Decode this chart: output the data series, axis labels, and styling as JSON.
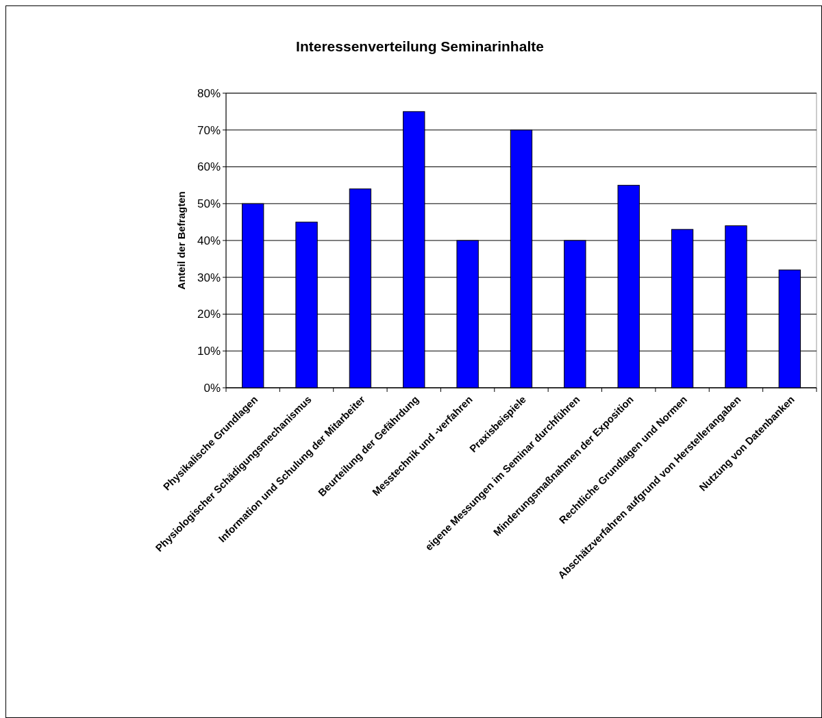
{
  "chart_data": {
    "type": "bar",
    "title": "Interessenverteilung Seminarinhalte",
    "ylabel": "Anteil der Befragten",
    "categories": [
      "Physikalische Grundlagen",
      "Physiologischer Schädigungsmechanismus",
      "Information und Schulung der Mitarbeiter",
      "Beurteilung der Gefährdung",
      "Messtechnik und -verfahren",
      "Praxisbeispiele",
      "eigene Messungen im Seminar durchführen",
      "Minderungsmaßnahmen der Exposition",
      "Rechtliche Grundlagen und Normen",
      "Abschätzverfahren aufgrund von Herstellerangaben",
      "Nutzung von Datenbanken"
    ],
    "values": [
      50,
      45,
      54,
      75,
      40,
      70,
      40,
      55,
      43,
      44,
      32
    ],
    "color": "#0000ff",
    "ylim": [
      0,
      80
    ],
    "yticks": [
      {
        "value": 0,
        "label": "0%"
      },
      {
        "value": 10,
        "label": "10%"
      },
      {
        "value": 20,
        "label": "20%"
      },
      {
        "value": 30,
        "label": "30%"
      },
      {
        "value": 40,
        "label": "40%"
      },
      {
        "value": 50,
        "label": "50%"
      },
      {
        "value": 60,
        "label": "60%"
      },
      {
        "value": 70,
        "label": "70%"
      },
      {
        "value": 80,
        "label": "80%"
      }
    ],
    "grid": "y"
  }
}
